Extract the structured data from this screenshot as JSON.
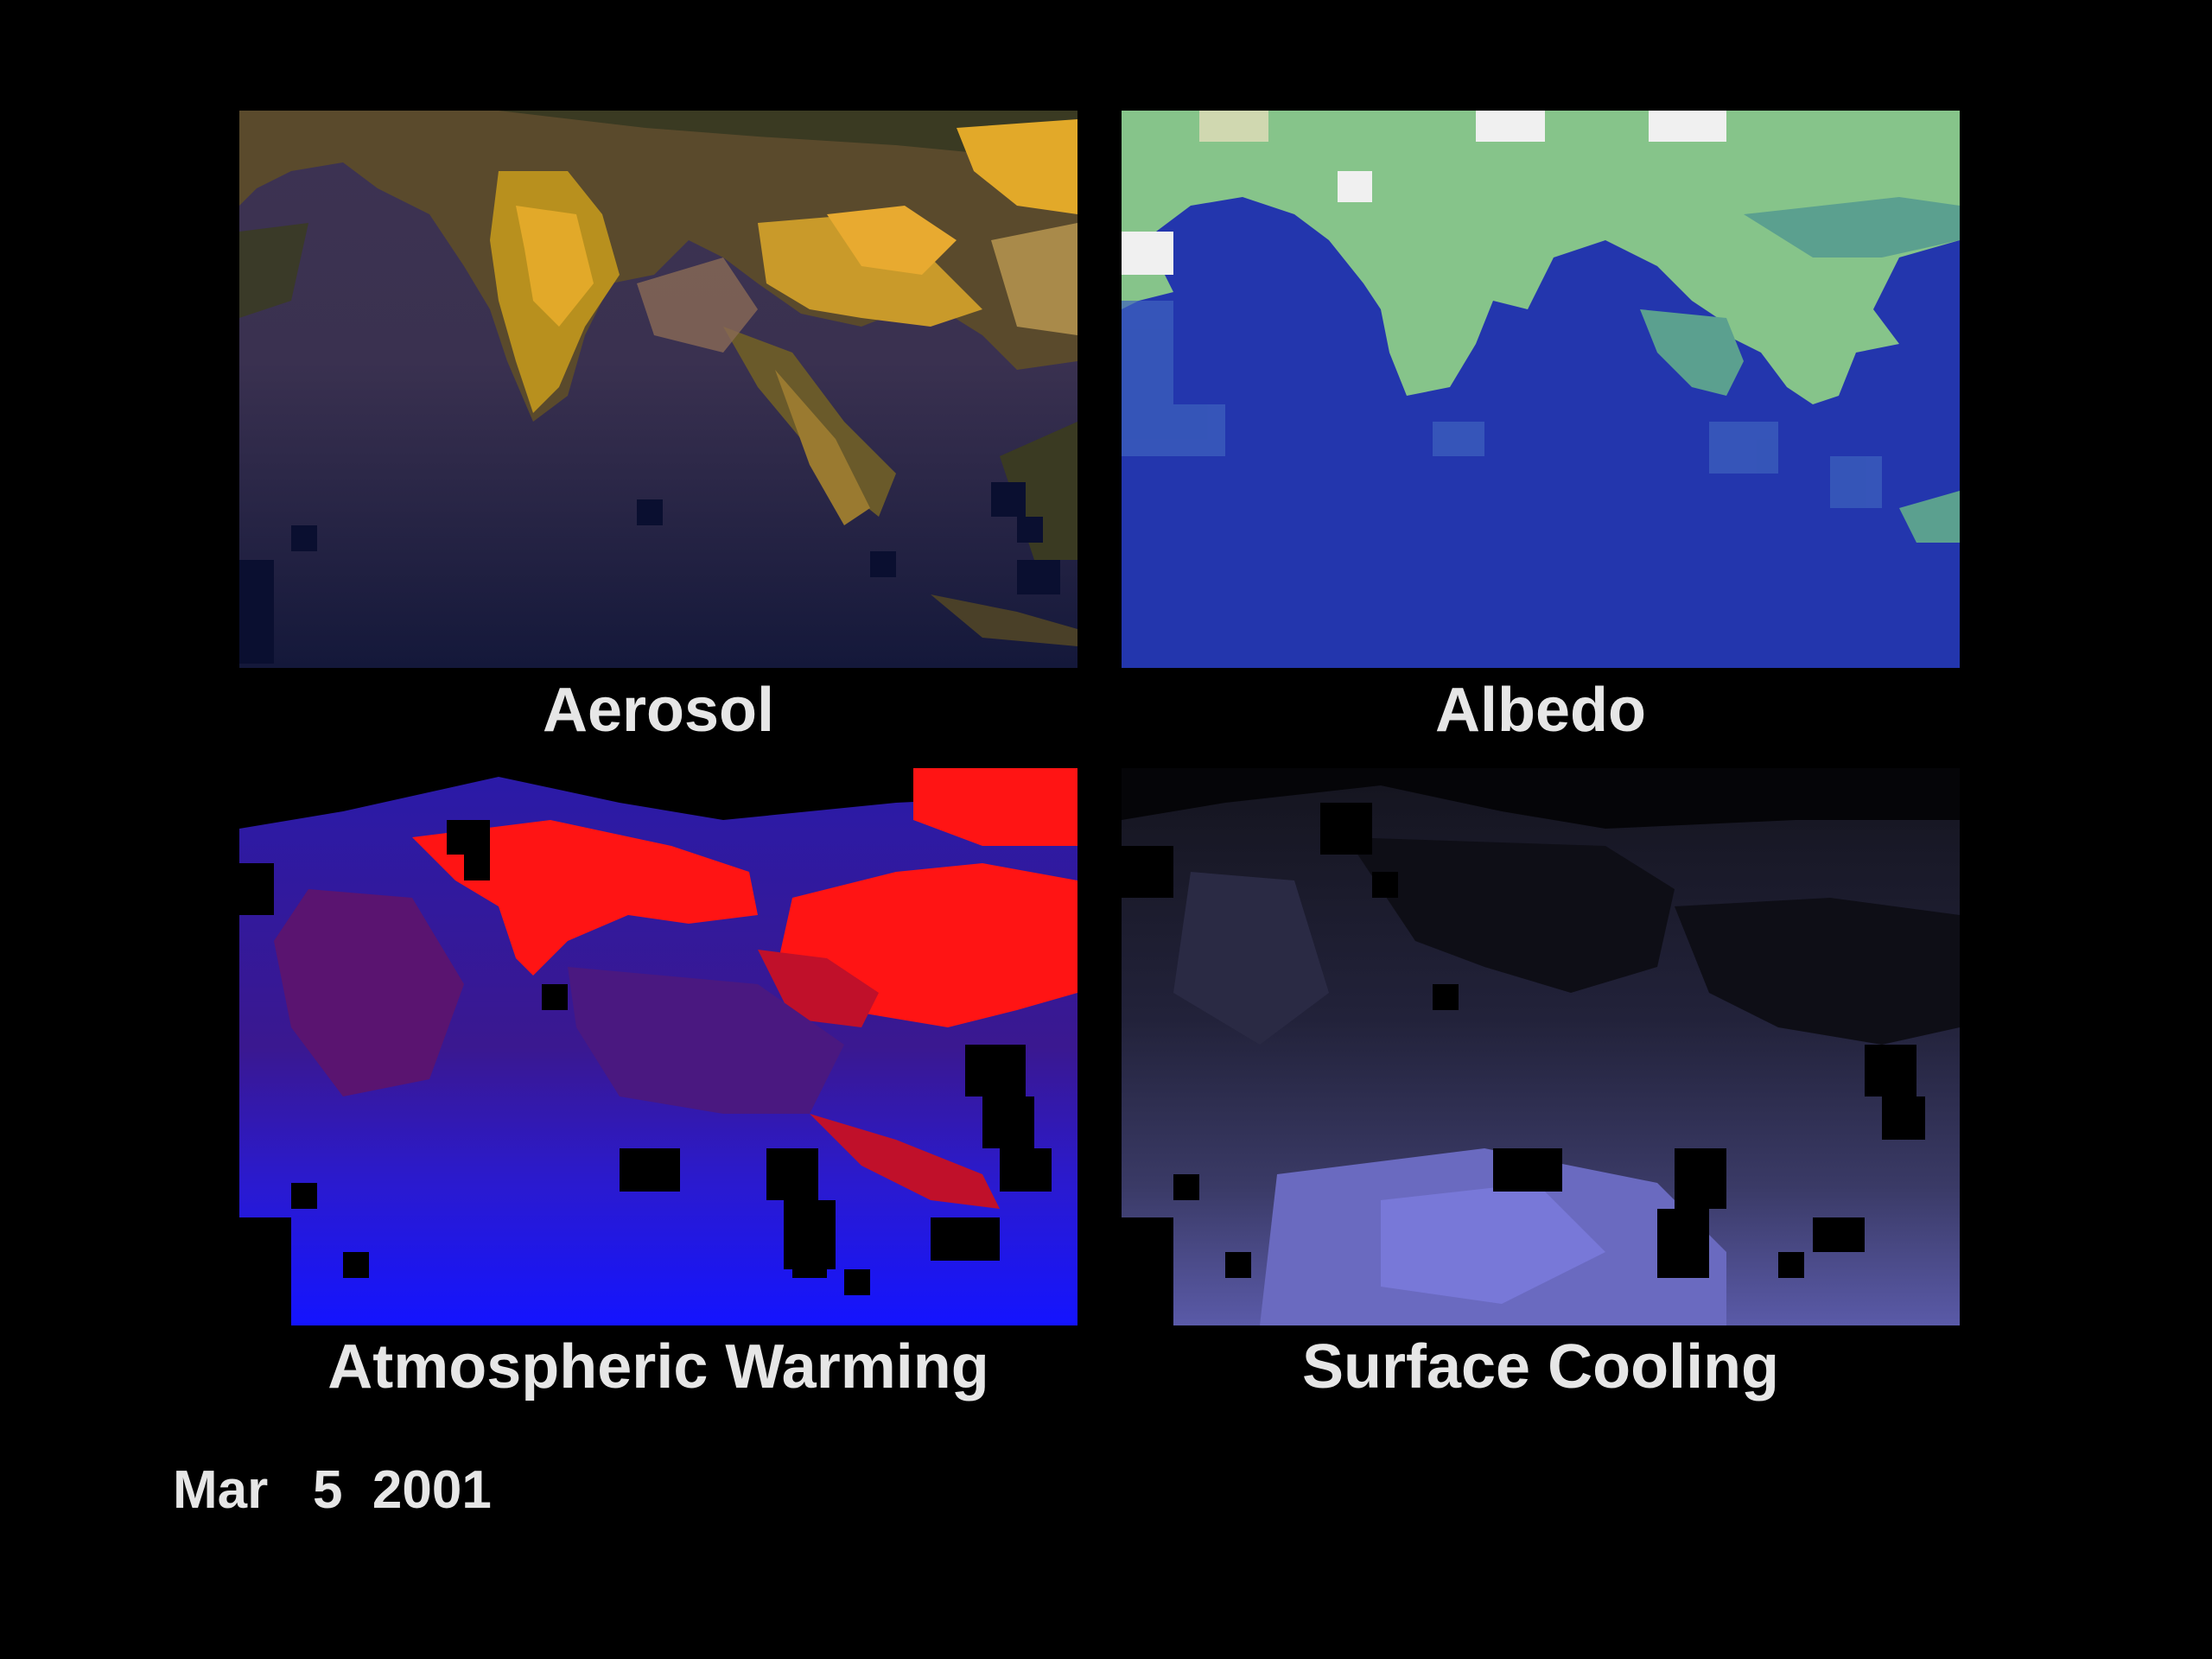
{
  "panels": {
    "aerosol": {
      "label": "Aerosol",
      "palette": [
        "#1a1b3a",
        "#3d3352",
        "#6b5a5a",
        "#a98a4a",
        "#e2a929"
      ]
    },
    "albedo": {
      "label": "Albedo",
      "palette": [
        "#2336ad",
        "#3e63bd",
        "#5ba08f",
        "#86c48a",
        "#f0f0f0"
      ]
    },
    "warming": {
      "label": "Atmospheric Warming",
      "palette": [
        "#1414ff",
        "#2a1aa8",
        "#5a1470",
        "#c0102a",
        "#ff1414"
      ]
    },
    "cooling": {
      "label": "Surface Cooling",
      "palette": [
        "#0c0c12",
        "#1c1c2c",
        "#2e2e4a",
        "#4a4a80",
        "#7070d0"
      ]
    }
  },
  "date": {
    "month": "Mar",
    "day": "5",
    "year": "2001"
  }
}
